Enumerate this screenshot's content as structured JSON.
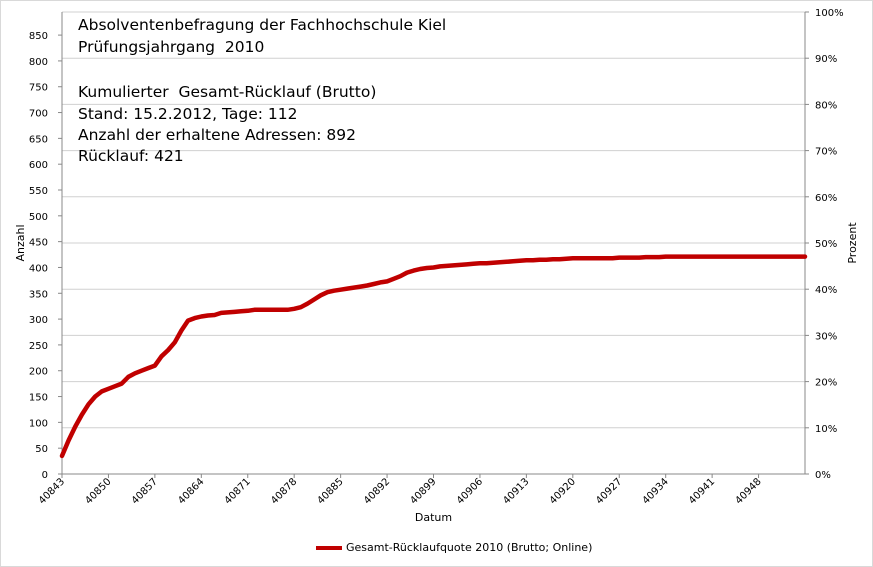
{
  "chart_data": {
    "type": "line",
    "annotations": [
      "Absolventenbefragung der Fachhochschule Kiel",
      "Prüfungsjahrgang  2010",
      "Kumulierter  Gesamt-Rücklauf (Brutto)",
      "Stand: 15.2.2012, Tage: 112",
      "Anzahl der erhaltene Adressen: 892",
      "Rücklauf: 421"
    ],
    "xlabel": "Datum",
    "ylabel": "Anzahl",
    "y2label": "Prozent",
    "xlim": [
      40843,
      40955
    ],
    "ylim": [
      0,
      850
    ],
    "y2lim": [
      0,
      100
    ],
    "x_ticks": [
      40843,
      40850,
      40857,
      40864,
      40871,
      40878,
      40885,
      40892,
      40899,
      40906,
      40913,
      40920,
      40927,
      40934,
      40941,
      40948
    ],
    "y_ticks": [
      0,
      50,
      100,
      150,
      200,
      250,
      300,
      350,
      400,
      450,
      500,
      550,
      600,
      650,
      700,
      750,
      800,
      850
    ],
    "y2_ticks": [
      "0%",
      "10%",
      "20%",
      "30%",
      "40%",
      "50%",
      "60%",
      "70%",
      "80%",
      "90%",
      "100%"
    ],
    "grid": true,
    "legend_position": "bottom",
    "series": [
      {
        "name": "Gesamt-Rücklaufquote 2010 (Brutto; Online)",
        "color": "#c00000",
        "x": [
          40843,
          40844,
          40845,
          40846,
          40847,
          40848,
          40849,
          40850,
          40851,
          40852,
          40853,
          40854,
          40855,
          40856,
          40857,
          40858,
          40859,
          40860,
          40861,
          40862,
          40863,
          40864,
          40865,
          40866,
          40867,
          40868,
          40869,
          40870,
          40871,
          40872,
          40873,
          40874,
          40875,
          40876,
          40877,
          40878,
          40879,
          40880,
          40881,
          40882,
          40883,
          40884,
          40885,
          40886,
          40887,
          40888,
          40889,
          40890,
          40891,
          40892,
          40893,
          40894,
          40895,
          40896,
          40897,
          40898,
          40899,
          40900,
          40901,
          40902,
          40903,
          40904,
          40905,
          40906,
          40907,
          40908,
          40909,
          40910,
          40911,
          40912,
          40913,
          40914,
          40915,
          40916,
          40917,
          40918,
          40919,
          40920,
          40921,
          40922,
          40923,
          40924,
          40925,
          40926,
          40927,
          40928,
          40929,
          40930,
          40931,
          40932,
          40933,
          40934,
          40935,
          40940,
          40945,
          40950,
          40955
        ],
        "values": [
          35,
          65,
          92,
          115,
          135,
          150,
          160,
          165,
          170,
          175,
          188,
          195,
          200,
          205,
          210,
          228,
          240,
          255,
          278,
          297,
          302,
          305,
          307,
          308,
          312,
          313,
          314,
          315,
          316,
          318,
          318,
          318,
          318,
          318,
          318,
          320,
          323,
          330,
          338,
          346,
          352,
          355,
          357,
          359,
          361,
          363,
          365,
          368,
          371,
          373,
          378,
          383,
          390,
          394,
          397,
          399,
          400,
          402,
          403,
          404,
          405,
          406,
          407,
          408,
          408,
          409,
          410,
          411,
          412,
          413,
          414,
          414,
          415,
          415,
          416,
          416,
          417,
          418,
          418,
          418,
          418,
          418,
          418,
          418,
          419,
          419,
          419,
          419,
          420,
          420,
          420,
          421,
          421,
          421,
          421,
          421,
          421
        ]
      }
    ]
  }
}
